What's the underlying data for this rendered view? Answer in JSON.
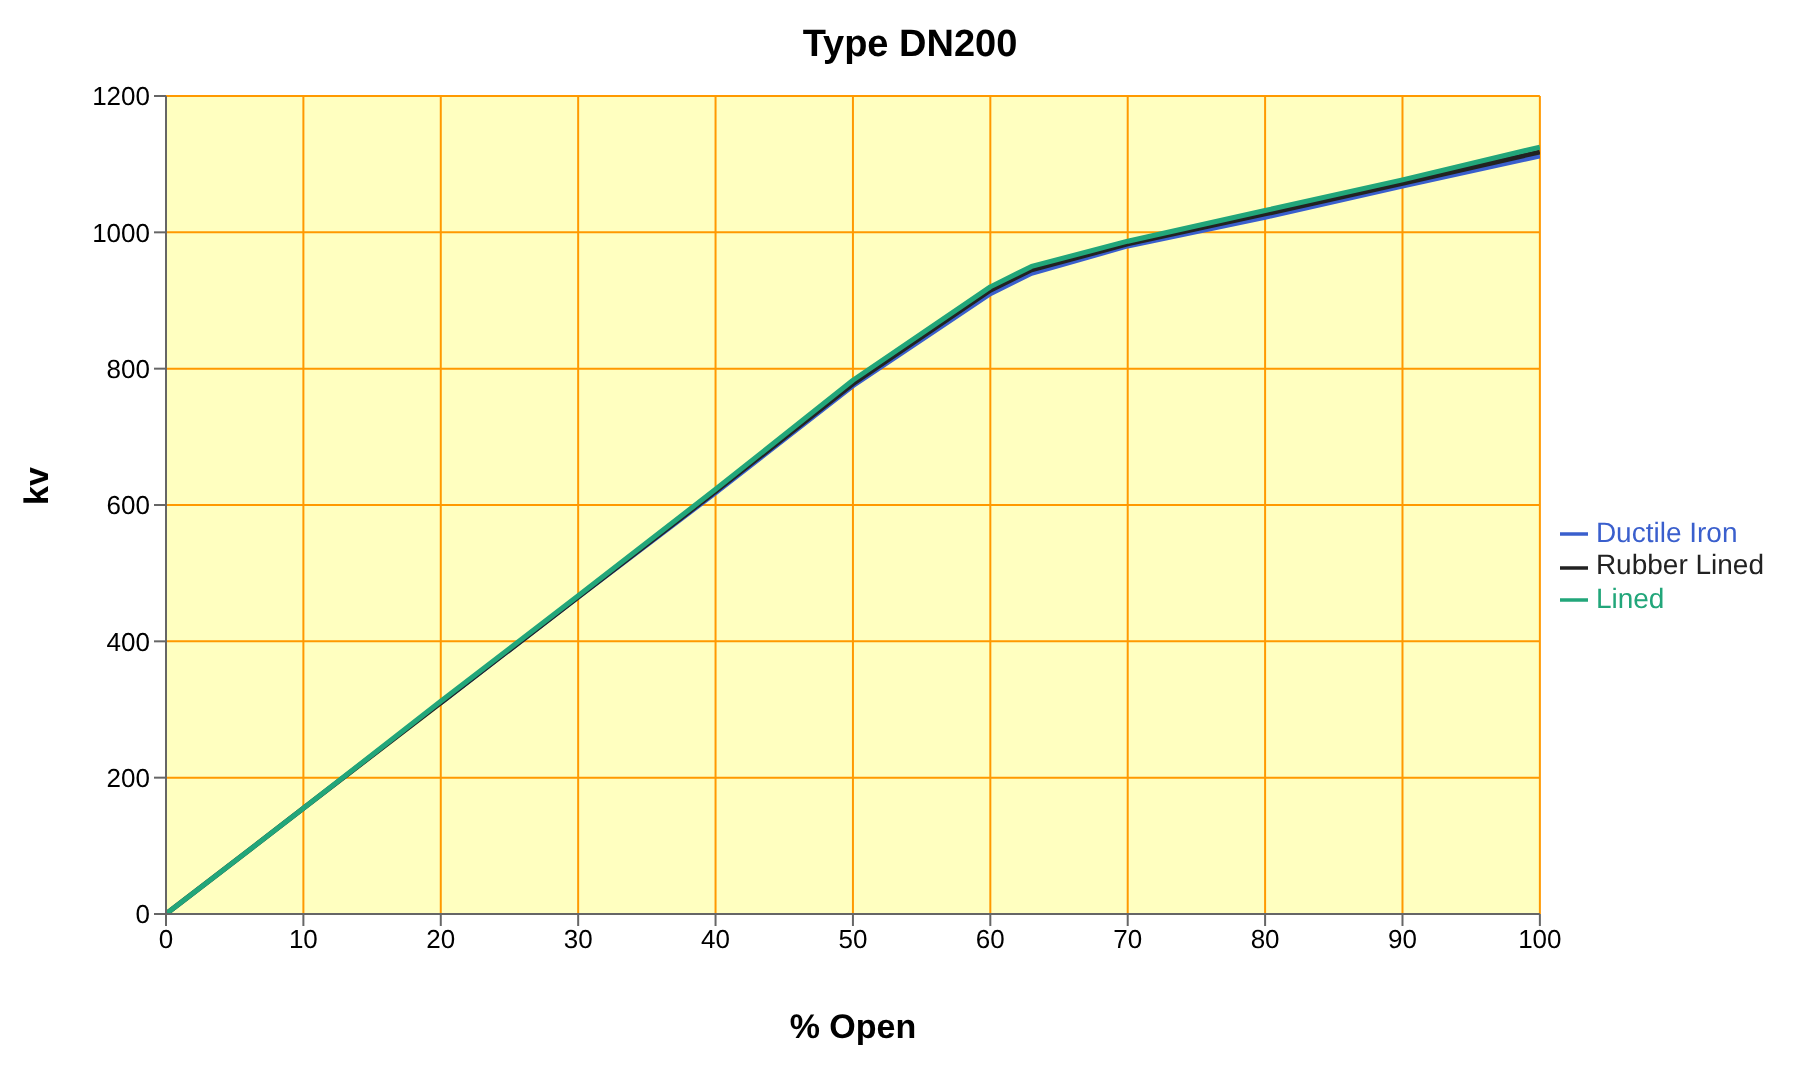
{
  "chart_data": {
    "type": "line",
    "title": "Type DN200",
    "xlabel": "% Open",
    "ylabel": "kv",
    "x": [
      0,
      10,
      20,
      30,
      40,
      50,
      60,
      63,
      70,
      80,
      90,
      100
    ],
    "series": [
      {
        "name": "Ductile Iron",
        "color": "#3a5fcd",
        "values": [
          null,
          null,
          310,
          465,
          618,
          775,
          910,
          940,
          980,
          1022,
          1068,
          1112
        ]
      },
      {
        "name": "Rubber Lined",
        "color": "#222222",
        "values": [
          0,
          155,
          310,
          465,
          620,
          778,
          915,
          945,
          983,
          1027,
          1072,
          1118
        ]
      },
      {
        "name": "Lined",
        "color": "#22a67a",
        "values": [
          0,
          155,
          312,
          467,
          623,
          783,
          920,
          950,
          987,
          1032,
          1077,
          1125
        ]
      }
    ],
    "xlim": [
      0,
      100
    ],
    "xticks": [
      0,
      10,
      20,
      30,
      40,
      50,
      60,
      70,
      80,
      90,
      100
    ],
    "ylim": [
      0,
      1200
    ],
    "yticks": [
      0,
      200,
      400,
      600,
      800,
      1000,
      1200
    ],
    "grid": true,
    "legend": "right"
  }
}
